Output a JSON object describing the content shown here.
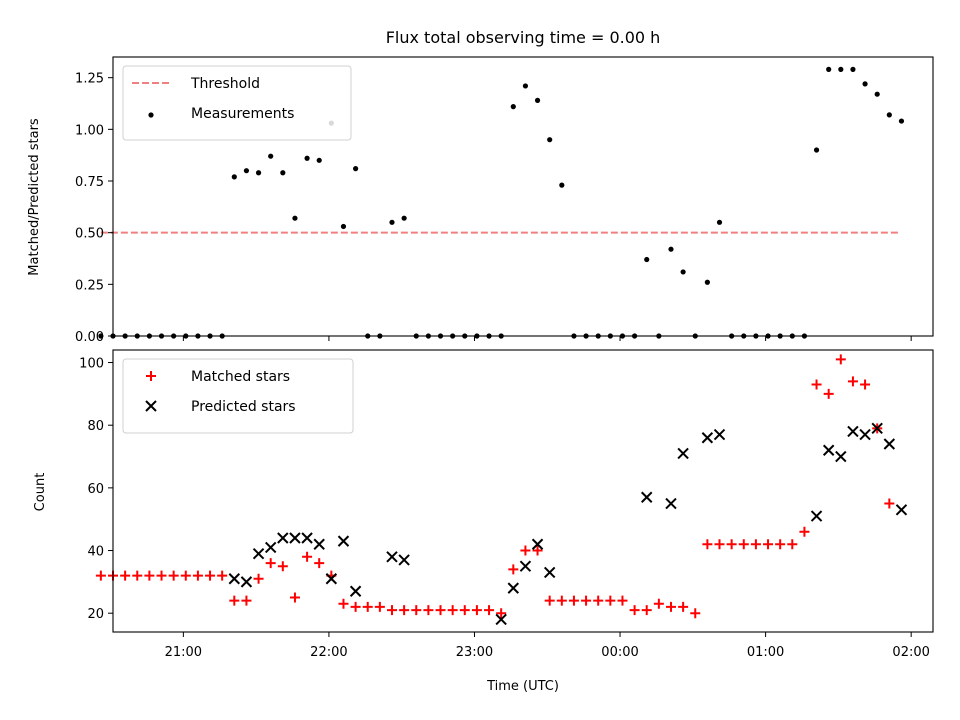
{
  "chart_data": [
    {
      "type": "scatter",
      "title": "Flux total observing time = 0.00 h",
      "xlabel": "",
      "ylabel": "Matched/Predicted stars",
      "xlim": [
        "20:31",
        "02:09"
      ],
      "ylim": [
        0,
        1.35
      ],
      "yticks": [
        0.0,
        0.25,
        0.5,
        0.75,
        1.0,
        1.25
      ],
      "ytick_labels": [
        "0.00",
        "0.25",
        "0.50",
        "0.75",
        "1.00",
        "1.25"
      ],
      "legend_position": "top-left",
      "series": [
        {
          "name": "Threshold",
          "kind": "dashed-line",
          "color": "#f08080",
          "points": [
            [
              "20:26",
              0.5
            ],
            [
              "01:55",
              0.5
            ]
          ]
        },
        {
          "name": "Measurements",
          "kind": "dot",
          "color": "#000000",
          "points": [
            [
              "20:26",
              0.0
            ],
            [
              "20:31",
              0.0
            ],
            [
              "20:36",
              0.0
            ],
            [
              "20:41",
              0.0
            ],
            [
              "20:46",
              0.0
            ],
            [
              "20:51",
              0.0
            ],
            [
              "20:56",
              0.0
            ],
            [
              "21:01",
              0.0
            ],
            [
              "21:06",
              0.0
            ],
            [
              "21:11",
              0.0
            ],
            [
              "21:16",
              0.0
            ],
            [
              "21:21",
              0.77
            ],
            [
              "21:26",
              0.8
            ],
            [
              "21:31",
              0.79
            ],
            [
              "21:36",
              0.87
            ],
            [
              "21:41",
              0.79
            ],
            [
              "21:46",
              0.57
            ],
            [
              "21:51",
              0.86
            ],
            [
              "21:56",
              0.85
            ],
            [
              "22:01",
              1.03
            ],
            [
              "22:06",
              0.53
            ],
            [
              "22:11",
              0.81
            ],
            [
              "22:16",
              0.0
            ],
            [
              "22:21",
              0.0
            ],
            [
              "22:26",
              0.55
            ],
            [
              "22:31",
              0.57
            ],
            [
              "22:36",
              0.0
            ],
            [
              "22:41",
              0.0
            ],
            [
              "22:46",
              0.0
            ],
            [
              "22:51",
              0.0
            ],
            [
              "22:56",
              0.0
            ],
            [
              "23:01",
              0.0
            ],
            [
              "23:06",
              0.0
            ],
            [
              "23:11",
              0.0
            ],
            [
              "23:16",
              1.11
            ],
            [
              "23:21",
              1.21
            ],
            [
              "23:26",
              1.14
            ],
            [
              "23:31",
              0.95
            ],
            [
              "23:36",
              0.73
            ],
            [
              "23:41",
              0.0
            ],
            [
              "23:46",
              0.0
            ],
            [
              "23:51",
              0.0
            ],
            [
              "23:56",
              0.0
            ],
            [
              "00:01",
              0.0
            ],
            [
              "00:06",
              0.0
            ],
            [
              "00:11",
              0.37
            ],
            [
              "00:16",
              0.0
            ],
            [
              "00:21",
              0.42
            ],
            [
              "00:26",
              0.31
            ],
            [
              "00:31",
              0.0
            ],
            [
              "00:36",
              0.26
            ],
            [
              "00:41",
              0.55
            ],
            [
              "00:46",
              0.0
            ],
            [
              "00:51",
              0.0
            ],
            [
              "00:56",
              0.0
            ],
            [
              "01:01",
              0.0
            ],
            [
              "01:06",
              0.0
            ],
            [
              "01:11",
              0.0
            ],
            [
              "01:16",
              0.0
            ],
            [
              "01:21",
              0.9
            ],
            [
              "01:26",
              1.29
            ],
            [
              "01:31",
              1.29
            ],
            [
              "01:36",
              1.29
            ],
            [
              "01:41",
              1.22
            ],
            [
              "01:46",
              1.17
            ],
            [
              "01:51",
              1.07
            ],
            [
              "01:56",
              1.04
            ]
          ]
        }
      ]
    },
    {
      "type": "scatter",
      "title": "",
      "xlabel": "Time (UTC)",
      "ylabel": "Count",
      "xlim": [
        "20:31",
        "02:09"
      ],
      "ylim": [
        14,
        104
      ],
      "xticks": [
        "21:00",
        "22:00",
        "23:00",
        "00:00",
        "01:00",
        "02:00"
      ],
      "yticks": [
        20,
        40,
        60,
        80,
        100
      ],
      "ytick_labels": [
        "20",
        "40",
        "60",
        "80",
        "100"
      ],
      "legend_position": "top-left",
      "series": [
        {
          "name": "Matched stars",
          "kind": "plus",
          "color": "#ff0000",
          "points": [
            [
              "20:26",
              32
            ],
            [
              "20:31",
              32
            ],
            [
              "20:36",
              32
            ],
            [
              "20:41",
              32
            ],
            [
              "20:46",
              32
            ],
            [
              "20:51",
              32
            ],
            [
              "20:56",
              32
            ],
            [
              "21:01",
              32
            ],
            [
              "21:06",
              32
            ],
            [
              "21:11",
              32
            ],
            [
              "21:16",
              32
            ],
            [
              "21:21",
              24
            ],
            [
              "21:26",
              24
            ],
            [
              "21:31",
              31
            ],
            [
              "21:36",
              36
            ],
            [
              "21:41",
              35
            ],
            [
              "21:46",
              25
            ],
            [
              "21:51",
              38
            ],
            [
              "21:56",
              36
            ],
            [
              "22:01",
              32
            ],
            [
              "22:06",
              23
            ],
            [
              "22:11",
              22
            ],
            [
              "22:16",
              22
            ],
            [
              "22:21",
              22
            ],
            [
              "22:26",
              21
            ],
            [
              "22:31",
              21
            ],
            [
              "22:36",
              21
            ],
            [
              "22:41",
              21
            ],
            [
              "22:46",
              21
            ],
            [
              "22:51",
              21
            ],
            [
              "22:56",
              21
            ],
            [
              "23:01",
              21
            ],
            [
              "23:06",
              21
            ],
            [
              "23:11",
              20
            ],
            [
              "23:16",
              34
            ],
            [
              "23:21",
              40
            ],
            [
              "23:26",
              40
            ],
            [
              "23:31",
              24
            ],
            [
              "23:36",
              24
            ],
            [
              "23:41",
              24
            ],
            [
              "23:46",
              24
            ],
            [
              "23:51",
              24
            ],
            [
              "23:56",
              24
            ],
            [
              "00:01",
              24
            ],
            [
              "00:06",
              21
            ],
            [
              "00:11",
              21
            ],
            [
              "00:16",
              23
            ],
            [
              "00:21",
              22
            ],
            [
              "00:26",
              22
            ],
            [
              "00:31",
              20
            ],
            [
              "00:36",
              42
            ],
            [
              "00:41",
              42
            ],
            [
              "00:46",
              42
            ],
            [
              "00:51",
              42
            ],
            [
              "00:56",
              42
            ],
            [
              "01:01",
              42
            ],
            [
              "01:06",
              42
            ],
            [
              "01:11",
              42
            ],
            [
              "01:16",
              46
            ],
            [
              "01:21",
              93
            ],
            [
              "01:26",
              90
            ],
            [
              "01:31",
              101
            ],
            [
              "01:36",
              94
            ],
            [
              "01:41",
              93
            ],
            [
              "01:46",
              79
            ],
            [
              "01:51",
              55
            ]
          ]
        },
        {
          "name": "Predicted stars",
          "kind": "cross",
          "color": "#000000",
          "points": [
            [
              "21:21",
              31
            ],
            [
              "21:26",
              30
            ],
            [
              "21:31",
              39
            ],
            [
              "21:36",
              41
            ],
            [
              "21:41",
              44
            ],
            [
              "21:46",
              44
            ],
            [
              "21:51",
              44
            ],
            [
              "21:56",
              42
            ],
            [
              "22:01",
              31
            ],
            [
              "22:06",
              43
            ],
            [
              "22:11",
              27
            ],
            [
              "22:26",
              38
            ],
            [
              "22:31",
              37
            ],
            [
              "23:11",
              18
            ],
            [
              "23:16",
              28
            ],
            [
              "23:21",
              35
            ],
            [
              "23:26",
              42
            ],
            [
              "23:31",
              33
            ],
            [
              "00:11",
              57
            ],
            [
              "00:21",
              55
            ],
            [
              "00:26",
              71
            ],
            [
              "00:36",
              76
            ],
            [
              "00:41",
              77
            ],
            [
              "01:21",
              51
            ],
            [
              "01:26",
              72
            ],
            [
              "01:31",
              70
            ],
            [
              "01:36",
              78
            ],
            [
              "01:41",
              77
            ],
            [
              "01:46",
              79
            ],
            [
              "01:51",
              74
            ],
            [
              "01:56",
              53
            ]
          ]
        }
      ]
    }
  ]
}
